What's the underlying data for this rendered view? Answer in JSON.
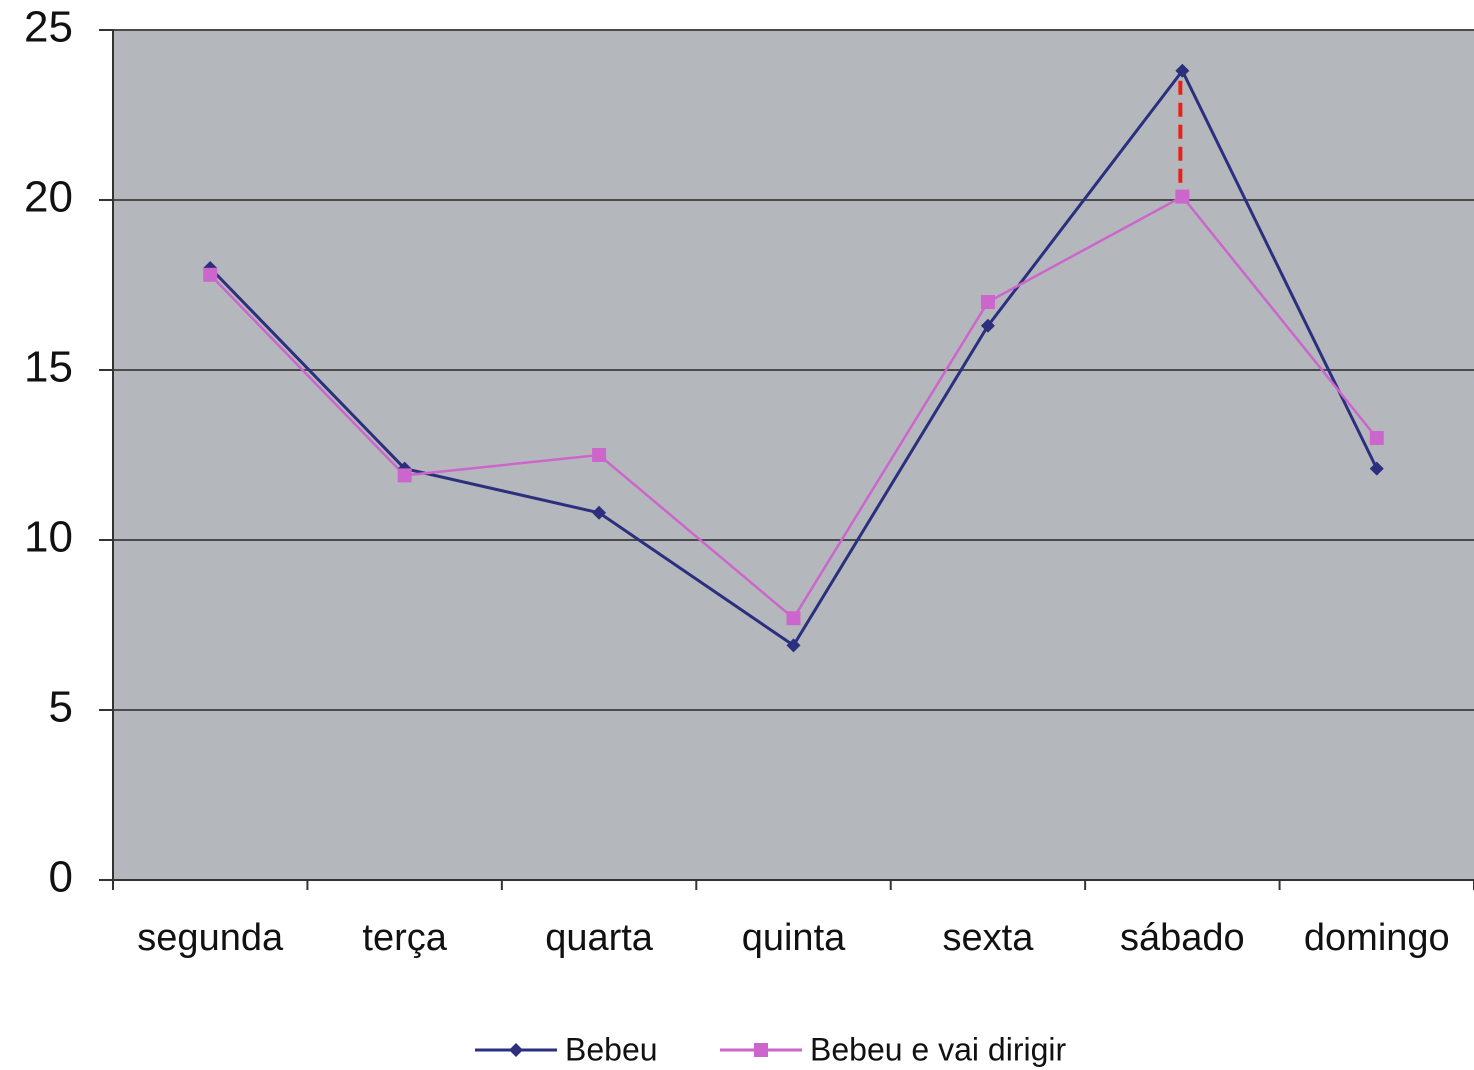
{
  "chart_data": {
    "type": "line",
    "categories": [
      "segunda",
      "terça",
      "quarta",
      "quinta",
      "sexta",
      "sábado",
      "domingo"
    ],
    "series": [
      {
        "name": "Bebeu",
        "color": "#2b2f7e",
        "values": [
          18.0,
          12.1,
          10.8,
          6.9,
          16.3,
          23.8,
          12.1
        ]
      },
      {
        "name": "Bebeu e vai dirigir",
        "color": "#cc66cc",
        "values": [
          17.8,
          11.9,
          12.5,
          7.7,
          17.0,
          20.1,
          13.0
        ]
      }
    ],
    "ylim": [
      0,
      25
    ],
    "yticks": [
      0,
      5,
      10,
      15,
      20,
      25
    ],
    "grid": true,
    "plot_background": "#b4b8bc",
    "annotation_color": "#e8201a"
  }
}
